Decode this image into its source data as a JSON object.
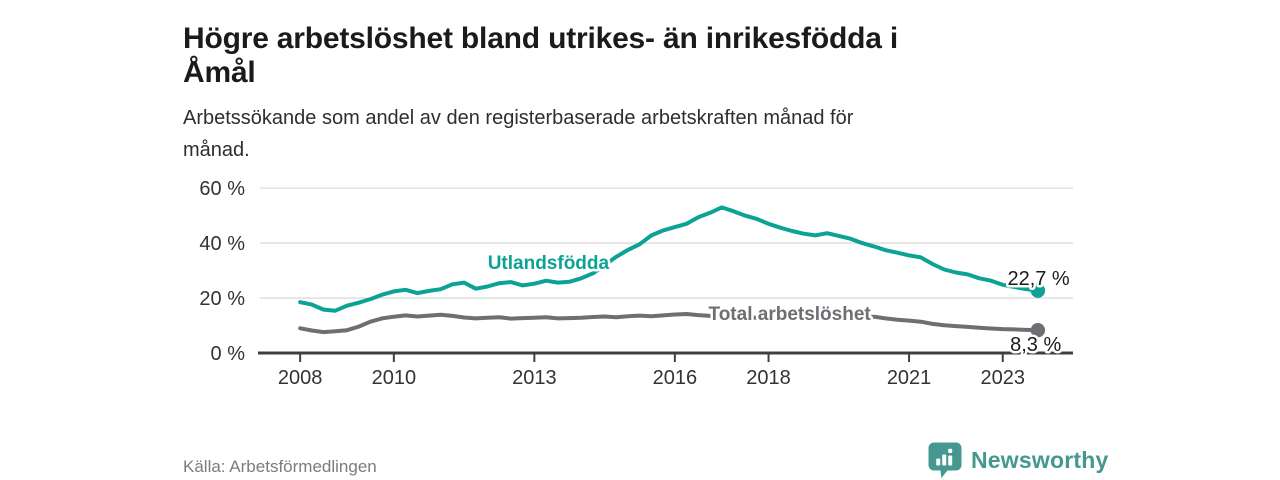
{
  "header": {
    "title": "Högre arbetslöshet bland utrikes- än inrikesfödda i Åmål",
    "title_lines": [
      "Högre arbetslöshet bland utrikes- än inrikesfödda i",
      "Åmål"
    ],
    "subtitle": "Arbetssökande som andel av den registerbaserade arbetskraften månad för månad.",
    "subtitle_lines": [
      "Arbetssökande som andel av den registerbaserade arbetskraften månad för",
      "månad."
    ]
  },
  "footer": {
    "source": "Källa: Arbetsförmedlingen",
    "brand": "Newsworthy"
  },
  "colors": {
    "background": "#ffffff",
    "title_text": "#1b1b1b",
    "body_text": "#2e2e2e",
    "muted_text": "#7c7c80",
    "grid": "#dcdcdc",
    "axis": "#3f3f42",
    "teal_series": "#0ca294",
    "gray_series": "#6e6e73",
    "brand_teal": "#45988f",
    "value_label": "#1a1a1a"
  },
  "chart_data": {
    "type": "line",
    "title": "Högre arbetslöshet bland utrikes- än inrikesfödda i Åmål",
    "subtitle": "Arbetssökande som andel av den registerbaserade arbetskraften månad för månad.",
    "xlabel": "",
    "ylabel": "",
    "x_unit": "year",
    "y_unit": "%",
    "grid": "horizontal",
    "legend_position": "inline-labels",
    "xlim": [
      2007.1,
      2024.5
    ],
    "ylim": [
      0,
      65.5
    ],
    "x_ticks": [
      {
        "value": 2008,
        "label": "2008"
      },
      {
        "value": 2010,
        "label": "2010"
      },
      {
        "value": 2013,
        "label": "2013"
      },
      {
        "value": 2016,
        "label": "2016"
      },
      {
        "value": 2018,
        "label": "2018"
      },
      {
        "value": 2021,
        "label": "2021"
      },
      {
        "value": 2023,
        "label": "2023"
      }
    ],
    "y_ticks": [
      {
        "value": 0,
        "label": "0 %"
      },
      {
        "value": 20,
        "label": "20 %"
      },
      {
        "value": 40,
        "label": "40 %"
      },
      {
        "value": 60,
        "label": "60 %"
      }
    ],
    "x": [
      2008.0,
      2008.25,
      2008.5,
      2008.75,
      2009.0,
      2009.25,
      2009.5,
      2009.75,
      2010.0,
      2010.25,
      2010.5,
      2010.75,
      2011.0,
      2011.25,
      2011.5,
      2011.75,
      2012.0,
      2012.25,
      2012.5,
      2012.75,
      2013.0,
      2013.25,
      2013.5,
      2013.75,
      2014.0,
      2014.25,
      2014.5,
      2014.75,
      2015.0,
      2015.25,
      2015.5,
      2015.75,
      2016.0,
      2016.25,
      2016.5,
      2016.75,
      2017.0,
      2017.25,
      2017.5,
      2017.75,
      2018.0,
      2018.25,
      2018.5,
      2018.75,
      2019.0,
      2019.25,
      2019.5,
      2019.75,
      2020.0,
      2020.25,
      2020.5,
      2020.75,
      2021.0,
      2021.25,
      2021.5,
      2021.75,
      2022.0,
      2022.25,
      2022.5,
      2022.75,
      2023.0,
      2023.25,
      2023.5,
      2023.75
    ],
    "series": [
      {
        "name": "Utlandsfödda",
        "color": "#0ca294",
        "end_label": "22,7 %",
        "end_value": 22.7,
        "values": [
          18.5,
          17.6,
          15.8,
          15.4,
          17.2,
          18.3,
          19.6,
          21.2,
          22.4,
          23.0,
          21.8,
          22.6,
          23.2,
          25.0,
          25.6,
          23.4,
          24.2,
          25.4,
          25.8,
          24.6,
          25.2,
          26.3,
          25.6,
          25.9,
          27.2,
          29.0,
          32.0,
          35.0,
          37.5,
          39.6,
          42.8,
          44.6,
          45.8,
          47.0,
          49.4,
          51.0,
          53.0,
          51.6,
          50.0,
          48.8,
          47.0,
          45.6,
          44.4,
          43.4,
          42.8,
          43.6,
          42.6,
          41.6,
          40.0,
          38.8,
          37.4,
          36.5,
          35.5,
          34.8,
          32.4,
          30.4,
          29.3,
          28.6,
          27.2,
          26.3,
          24.8,
          24.0,
          23.2,
          22.7
        ]
      },
      {
        "name": "Total arbetslöshet",
        "color": "#6e6e73",
        "end_label": "8,3 %",
        "end_value": 8.3,
        "values": [
          9.0,
          8.2,
          7.6,
          7.9,
          8.3,
          9.6,
          11.4,
          12.6,
          13.2,
          13.7,
          13.3,
          13.6,
          13.9,
          13.5,
          12.9,
          12.6,
          12.8,
          13.0,
          12.5,
          12.7,
          12.8,
          13.0,
          12.6,
          12.7,
          12.8,
          13.1,
          13.3,
          13.0,
          13.4,
          13.6,
          13.4,
          13.7,
          14.0,
          14.2,
          13.8,
          13.5,
          13.2,
          13.4,
          13.0,
          12.8,
          12.6,
          12.4,
          12.7,
          12.9,
          12.6,
          12.8,
          12.5,
          12.7,
          13.0,
          13.2,
          12.6,
          12.1,
          11.8,
          11.4,
          10.6,
          10.1,
          9.8,
          9.5,
          9.2,
          8.9,
          8.7,
          8.6,
          8.4,
          8.3
        ]
      }
    ],
    "annotations": [
      {
        "text": "Utlandsfödda",
        "x": 2013.3,
        "y": 30.6,
        "anchor": "middle",
        "color": "#0ca294",
        "bold": true,
        "halo": true
      },
      {
        "text": "Total arbetslöshet",
        "x": 2018.45,
        "y": 12.0,
        "anchor": "middle",
        "color": "#6e6e73",
        "bold": true,
        "halo": true
      },
      {
        "text": "22,7 %",
        "x": 2024.43,
        "y": 24.7,
        "anchor": "end",
        "color": "#1a1a1a",
        "bold": false,
        "halo": true
      },
      {
        "text": "8,3 %",
        "x": 2024.25,
        "y": 0.7,
        "anchor": "end",
        "color": "#1a1a1a",
        "bold": false,
        "halo": true
      }
    ]
  }
}
